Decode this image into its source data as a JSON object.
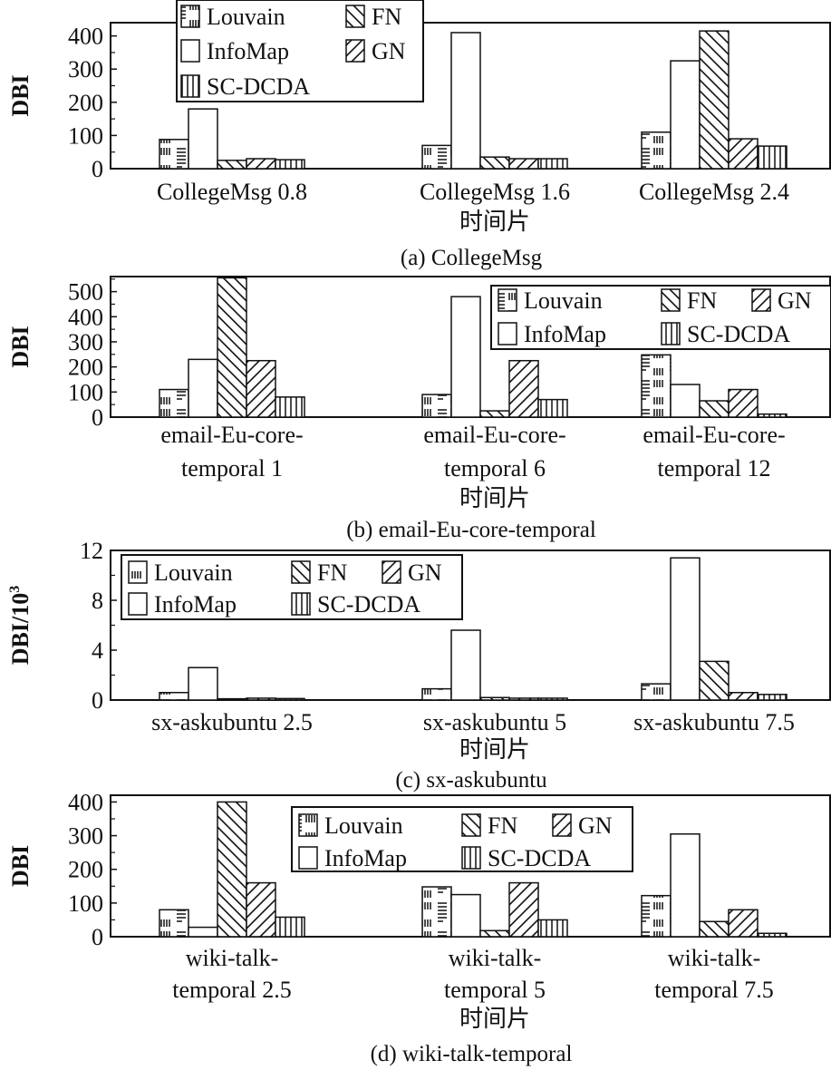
{
  "legend_labels": [
    "Louvain",
    "InfoMap",
    "FN",
    "GN",
    "SC-DCDA"
  ],
  "chart_data": [
    {
      "type": "bar",
      "title": "(a) CollegeMsg",
      "xlabel": "时间片",
      "ylabel": "DBI",
      "ylim": [
        0,
        440
      ],
      "yticks": [
        0,
        100,
        200,
        300,
        400
      ],
      "categories": [
        [
          "CollegeMsg 0.8"
        ],
        [
          "CollegeMsg 1.6"
        ],
        [
          "CollegeMsg 2.4"
        ]
      ],
      "legend_position": "top-left",
      "series": [
        {
          "name": "Louvain",
          "values": [
            88,
            70,
            110
          ]
        },
        {
          "name": "InfoMap",
          "values": [
            180,
            410,
            325
          ]
        },
        {
          "name": "FN",
          "values": [
            25,
            35,
            415
          ]
        },
        {
          "name": "GN",
          "values": [
            30,
            30,
            90
          ]
        },
        {
          "name": "SC-DCDA",
          "values": [
            27,
            30,
            68
          ]
        }
      ]
    },
    {
      "type": "bar",
      "title": "(b) email-Eu-core-temporal",
      "xlabel": "时间片",
      "ylabel": "DBI",
      "ylim": [
        0,
        560
      ],
      "yticks": [
        0,
        100,
        200,
        300,
        400,
        500
      ],
      "categories": [
        [
          "email-Eu-core-",
          "temporal 1"
        ],
        [
          "email-Eu-core-",
          "temporal 6"
        ],
        [
          "email-Eu-core-",
          "temporal 12"
        ]
      ],
      "legend_position": "top-right",
      "series": [
        {
          "name": "Louvain",
          "values": [
            110,
            90,
            248
          ]
        },
        {
          "name": "InfoMap",
          "values": [
            230,
            480,
            130
          ]
        },
        {
          "name": "FN",
          "values": [
            555,
            25,
            65
          ]
        },
        {
          "name": "GN",
          "values": [
            225,
            225,
            110
          ]
        },
        {
          "name": "SC-DCDA",
          "values": [
            80,
            70,
            12
          ]
        }
      ]
    },
    {
      "type": "bar",
      "title": "(c) sx-askubuntu",
      "xlabel": "时间片",
      "ylabel": "DBI/10",
      "ylabel_sup": "3",
      "ylim": [
        0,
        12
      ],
      "yticks": [
        0,
        4,
        8,
        12
      ],
      "categories": [
        [
          "sx-askubuntu 2.5"
        ],
        [
          "sx-askubuntu 5"
        ],
        [
          "sx-askubuntu 7.5"
        ]
      ],
      "legend_position": "top-left",
      "series": [
        {
          "name": "Louvain",
          "values": [
            0.6,
            0.9,
            1.3
          ]
        },
        {
          "name": "InfoMap",
          "values": [
            2.6,
            5.6,
            11.4
          ]
        },
        {
          "name": "FN",
          "values": [
            0.1,
            0.2,
            3.1
          ]
        },
        {
          "name": "GN",
          "values": [
            0.15,
            0.15,
            0.6
          ]
        },
        {
          "name": "SC-DCDA",
          "values": [
            0.12,
            0.15,
            0.45
          ]
        }
      ]
    },
    {
      "type": "bar",
      "title": "(d) wiki-talk-temporal",
      "xlabel": "时间片",
      "ylabel": "DBI",
      "ylim": [
        0,
        420
      ],
      "yticks": [
        0,
        100,
        200,
        300,
        400
      ],
      "categories": [
        [
          "wiki-talk-",
          "temporal 2.5"
        ],
        [
          "wiki-talk-",
          "temporal 5"
        ],
        [
          "wiki-talk-",
          "temporal 7.5"
        ]
      ],
      "legend_position": "top-center",
      "series": [
        {
          "name": "Louvain",
          "values": [
            80,
            148,
            122
          ]
        },
        {
          "name": "InfoMap",
          "values": [
            28,
            125,
            305
          ]
        },
        {
          "name": "FN",
          "values": [
            400,
            18,
            45
          ]
        },
        {
          "name": "GN",
          "values": [
            160,
            160,
            80
          ]
        },
        {
          "name": "SC-DCDA",
          "values": [
            58,
            50,
            10
          ]
        }
      ]
    }
  ]
}
